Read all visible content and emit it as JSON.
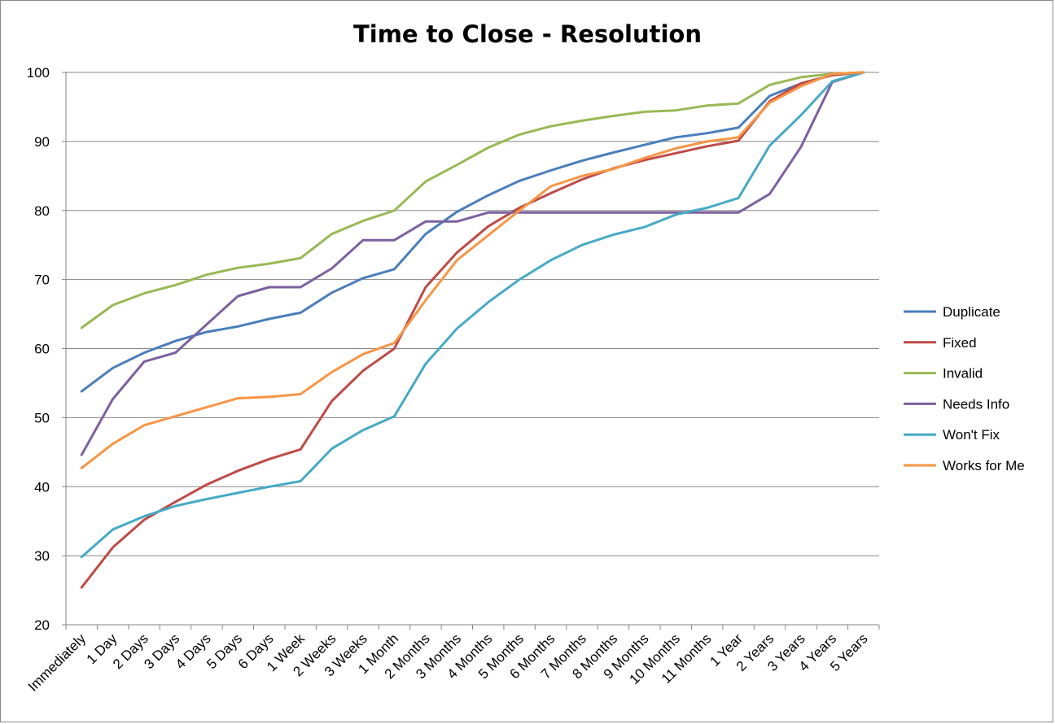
{
  "chart_data": {
    "type": "line",
    "title": "Time to Close - Resolution",
    "xlabel": "",
    "ylabel": "",
    "ylim": [
      20,
      100
    ],
    "yticks": [
      "20",
      "30",
      "40",
      "50",
      "60",
      "70",
      "80",
      "90",
      "100"
    ],
    "grid": "horizontal",
    "legend_position": "right",
    "categories": [
      "Immediately",
      "1 Day",
      "2 Days",
      "3 Days",
      "4 Days",
      "5 Days",
      "6 Days",
      "1 Week",
      "2 Weeks",
      "3 Weeks",
      "1 Month",
      "2 Months",
      "3 Months",
      "4 Months",
      "5 Months",
      "6 Months",
      "7 Months",
      "8 Months",
      "9 Months",
      "10 Months",
      "11 Months",
      "1 Year",
      "2 Years",
      "3 Years",
      "4 Years",
      "5 Years"
    ],
    "series": [
      {
        "name": "Duplicate",
        "color": "#4a7ebb",
        "values": [
          53.8,
          57.2,
          59.4,
          61.1,
          62.4,
          63.2,
          64.3,
          65.2,
          68.1,
          70.2,
          71.5,
          76.6,
          79.8,
          82.2,
          84.3,
          85.8,
          87.2,
          88.4,
          89.5,
          90.6,
          91.2,
          92.0,
          96.6,
          98.4,
          99.6,
          100
        ]
      },
      {
        "name": "Fixed",
        "color": "#be4b48",
        "values": [
          25.4,
          31.2,
          35.2,
          37.8,
          40.3,
          42.3,
          44.0,
          45.4,
          52.4,
          56.8,
          60.0,
          68.9,
          73.9,
          77.7,
          80.4,
          82.5,
          84.5,
          86.1,
          87.3,
          88.3,
          89.3,
          90.1,
          95.8,
          98.4,
          99.6,
          100
        ]
      },
      {
        "name": "Invalid",
        "color": "#98b954",
        "values": [
          63.0,
          66.3,
          68.0,
          69.2,
          70.7,
          71.7,
          72.3,
          73.1,
          76.6,
          78.5,
          80.0,
          84.2,
          86.6,
          89.1,
          91.0,
          92.2,
          93.0,
          93.7,
          94.3,
          94.5,
          95.2,
          95.5,
          98.2,
          99.3,
          99.8,
          100
        ]
      },
      {
        "name": "Needs Info",
        "color": "#7d60a0",
        "values": [
          44.6,
          52.7,
          58.1,
          59.4,
          63.5,
          67.6,
          68.9,
          68.9,
          71.6,
          75.7,
          75.7,
          78.4,
          78.4,
          79.7,
          79.7,
          79.7,
          79.7,
          79.7,
          79.7,
          79.7,
          79.7,
          79.7,
          82.4,
          89.2,
          98.6,
          100
        ]
      },
      {
        "name": "Won't Fix",
        "color": "#46aac5",
        "values": [
          29.8,
          33.8,
          35.7,
          37.2,
          38.2,
          39.1,
          40.0,
          40.8,
          45.5,
          48.2,
          50.2,
          57.8,
          62.9,
          66.7,
          70.0,
          72.8,
          75.0,
          76.5,
          77.6,
          79.4,
          80.4,
          81.8,
          89.4,
          93.8,
          98.7,
          100
        ]
      },
      {
        "name": "Works for Me",
        "color": "#f79646",
        "values": [
          42.7,
          46.2,
          48.9,
          50.2,
          51.5,
          52.8,
          53.0,
          53.4,
          56.6,
          59.2,
          60.8,
          67.0,
          72.8,
          76.4,
          80.0,
          83.5,
          85.0,
          86.0,
          87.6,
          89.0,
          90.0,
          90.6,
          95.6,
          98.0,
          99.8,
          100
        ]
      }
    ]
  }
}
